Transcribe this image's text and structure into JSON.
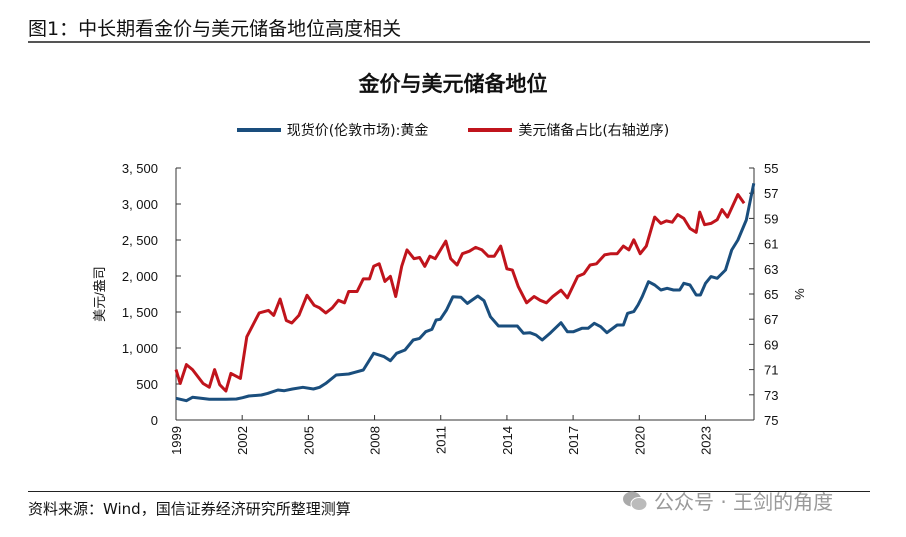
{
  "figure_title": "图1：中长期看金价与美元储备地位高度相关",
  "footer": {
    "source": "资料来源：Wind，国信证券经济研究所整理测算",
    "watermark": "公众号 · 王剑的角度",
    "watermark_icon": "wechat-icon"
  },
  "chart_data": {
    "type": "line",
    "title": "金价与美元储备地位",
    "ylabel": "美元/盎司",
    "y2label": "%",
    "xlim": [
      1999,
      2025.2
    ],
    "ylim": [
      0,
      3500
    ],
    "y2lim": [
      55,
      75
    ],
    "y2_reversed": true,
    "grid": false,
    "legend_position": "top",
    "x_ticks": [
      "1999",
      "2002",
      "2005",
      "2008",
      "2011",
      "2014",
      "2017",
      "2020",
      "2023"
    ],
    "y_ticks": [
      "0",
      "500",
      "1, 000",
      "1, 500",
      "2, 000",
      "2, 500",
      "3, 000",
      "3, 500"
    ],
    "y2_ticks": [
      "55",
      "57",
      "59",
      "61",
      "63",
      "65",
      "67",
      "69",
      "71",
      "73",
      "75"
    ],
    "series": [
      {
        "name": "现货价(伦敦市场):黄金",
        "axis": "left",
        "color": "#1a4e7d",
        "x": [
          1999.0,
          1999.47,
          1999.75,
          2000.13,
          2000.51,
          2001.26,
          2001.74,
          2002.02,
          2002.3,
          2002.87,
          2003.15,
          2003.62,
          2003.91,
          2004.28,
          2004.75,
          2005.23,
          2005.51,
          2005.79,
          2006.26,
          2006.83,
          2007.11,
          2007.49,
          2007.96,
          2008.43,
          2008.72,
          2009.0,
          2009.38,
          2009.75,
          2010.04,
          2010.32,
          2010.6,
          2010.79,
          2010.98,
          2011.26,
          2011.55,
          2011.92,
          2012.21,
          2012.68,
          2012.96,
          2013.25,
          2013.62,
          2013.91,
          2014.47,
          2014.75,
          2015.04,
          2015.32,
          2015.6,
          2015.98,
          2016.45,
          2016.74,
          2017.02,
          2017.4,
          2017.68,
          2017.96,
          2018.25,
          2018.53,
          2019.0,
          2019.28,
          2019.47,
          2019.75,
          2019.94,
          2020.13,
          2020.42,
          2020.7,
          2020.98,
          2021.26,
          2021.55,
          2021.83,
          2022.02,
          2022.3,
          2022.58,
          2022.77,
          2023.0,
          2023.25,
          2023.53,
          2023.91,
          2024.19,
          2024.47,
          2024.85,
          2025.19
        ],
        "y": [
          301,
          268,
          315,
          301,
          287,
          287,
          292,
          310,
          333,
          347,
          370,
          417,
          407,
          431,
          454,
          431,
          454,
          509,
          625,
          639,
          662,
          695,
          926,
          880,
          824,
          926,
          972,
          1111,
          1134,
          1227,
          1259,
          1389,
          1398,
          1528,
          1713,
          1704,
          1620,
          1722,
          1657,
          1435,
          1306,
          1306,
          1306,
          1204,
          1213,
          1181,
          1111,
          1213,
          1352,
          1227,
          1227,
          1273,
          1273,
          1343,
          1296,
          1213,
          1320,
          1320,
          1482,
          1505,
          1597,
          1713,
          1921,
          1875,
          1806,
          1829,
          1806,
          1806,
          1898,
          1875,
          1736,
          1736,
          1898,
          1991,
          1968,
          2083,
          2361,
          2500,
          2778,
          3287
        ]
      },
      {
        "name": "美元储备占比(右轴逆序)",
        "axis": "right",
        "color": "#c0141c",
        "x": [
          1999.0,
          1999.19,
          1999.47,
          1999.75,
          2000.23,
          2000.51,
          2000.75,
          2000.98,
          2001.26,
          2001.49,
          2001.92,
          2002.21,
          2002.77,
          2003.19,
          2003.43,
          2003.72,
          2004.0,
          2004.25,
          2004.57,
          2004.94,
          2005.26,
          2005.51,
          2005.79,
          2006.08,
          2006.36,
          2006.64,
          2006.83,
          2007.21,
          2007.49,
          2007.77,
          2007.96,
          2008.21,
          2008.47,
          2008.72,
          2008.96,
          2009.23,
          2009.47,
          2009.79,
          2010.04,
          2010.28,
          2010.51,
          2010.75,
          2011.23,
          2011.45,
          2011.74,
          2011.98,
          2012.3,
          2012.58,
          2012.87,
          2013.15,
          2013.43,
          2013.72,
          2014.0,
          2014.25,
          2014.51,
          2014.89,
          2015.23,
          2015.51,
          2015.79,
          2016.08,
          2016.45,
          2016.74,
          2017.21,
          2017.49,
          2017.77,
          2018.06,
          2018.43,
          2018.72,
          2019.0,
          2019.28,
          2019.53,
          2019.75,
          2020.04,
          2020.32,
          2020.7,
          2020.98,
          2021.23,
          2021.49,
          2021.74,
          2022.02,
          2022.3,
          2022.58,
          2022.74,
          2022.96,
          2023.25,
          2023.53,
          2023.75,
          2024.0,
          2024.47,
          2024.75
        ],
        "y": [
          71.0,
          72.1,
          70.6,
          71.0,
          72.1,
          72.4,
          71.0,
          72.2,
          72.7,
          71.3,
          71.7,
          68.4,
          66.5,
          66.3,
          66.7,
          65.4,
          67.1,
          67.3,
          66.7,
          65.1,
          65.9,
          66.1,
          66.5,
          66.1,
          65.5,
          65.7,
          64.8,
          64.8,
          63.8,
          63.8,
          62.8,
          62.6,
          64.0,
          63.6,
          65.2,
          62.8,
          61.5,
          62.2,
          62.1,
          62.8,
          62.0,
          62.2,
          60.8,
          62.2,
          62.7,
          61.8,
          61.6,
          61.3,
          61.5,
          62.0,
          62.0,
          61.2,
          63.0,
          63.1,
          64.4,
          65.7,
          65.2,
          65.5,
          65.7,
          65.2,
          64.7,
          65.3,
          63.6,
          63.4,
          62.7,
          62.6,
          61.9,
          61.8,
          61.8,
          61.2,
          61.5,
          60.7,
          61.8,
          61.2,
          58.9,
          59.4,
          59.2,
          59.3,
          58.7,
          59.0,
          59.8,
          60.1,
          58.5,
          59.5,
          59.4,
          59.1,
          58.3,
          58.9,
          57.1,
          57.8
        ]
      }
    ]
  }
}
